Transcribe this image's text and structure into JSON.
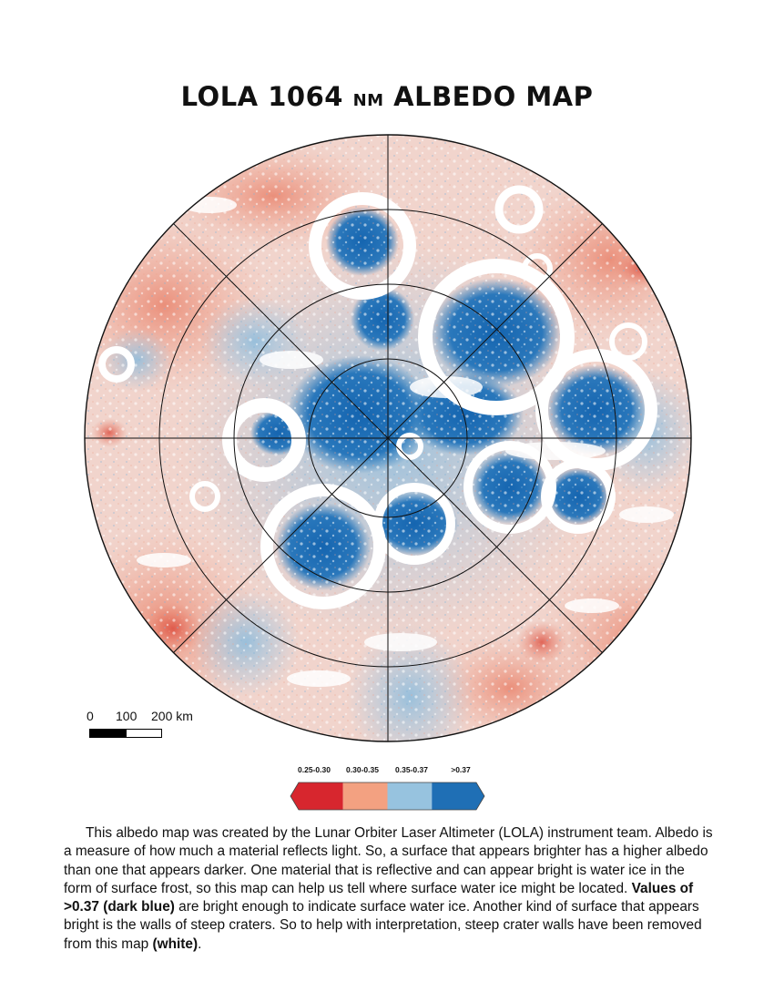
{
  "title": {
    "main": "LOLA 1064",
    "unit": "NM",
    "rest": "ALBEDO MAP"
  },
  "map": {
    "kind": "polar stereographic albedo map",
    "graticule": "concentric circles and radial meridians",
    "colors": {
      "band_1": "#d7262e",
      "band_2": "#f3a181",
      "band_3": "#97c3df",
      "band_4": "#1f6fb5",
      "removed_crater_walls": "#ffffff",
      "grid_lines": "#111111"
    }
  },
  "scale_bar": {
    "labels": [
      "0",
      "100",
      "200 km"
    ]
  },
  "legend": {
    "classes": [
      {
        "label": "0.25-0.30",
        "color": "#d7262e"
      },
      {
        "label": "0.30-0.35",
        "color": "#f3a181"
      },
      {
        "label": "0.35-0.37",
        "color": "#97c3df"
      },
      {
        "label": ">0.37",
        "color": "#1f6fb5"
      }
    ]
  },
  "description": {
    "p1": "This albedo map was created by  the Lunar Orbiter Laser Altimeter (LOLA) instrument team. Albedo is a measure of how much a material reflects light. So, a surface that appears brighter has a higher albedo than one that appears darker. One material that is reflective and can appear bright is water ice in the form of surface frost, so this map can help us tell where surface water ice might be located. ",
    "bold1": "Values of >0.37 (dark blue)",
    "p2": " are bright enough to indicate surface water ice. Another kind of surface that appears bright is the walls of steep craters. So to help with interpretation, steep crater walls have been removed from this map ",
    "bold2": "(white)",
    "p3": "."
  }
}
